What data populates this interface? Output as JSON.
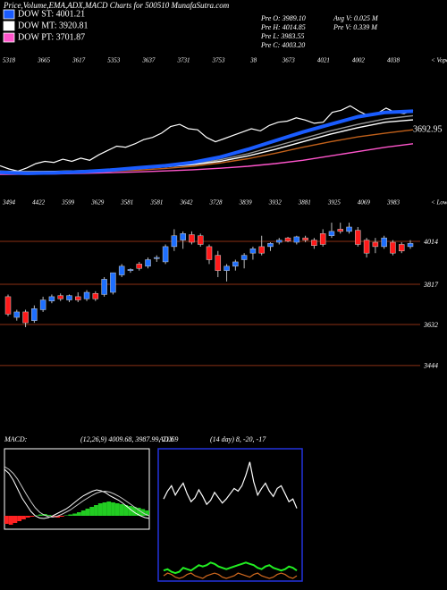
{
  "header": {
    "title": "Price,Volume,EMA,ADX,MACD Charts for 500510 MunafaSutra.com",
    "stats": [
      "Pre O: 3989.10",
      "Avg V: 0.025 M",
      "Pre H: 4014.85",
      "Pre V: 0.339 M",
      "Pre L: 3983.55",
      "Pre C: 4003.20"
    ]
  },
  "chart_data": [
    {
      "type": "line",
      "ylim": [
        3380,
        4530
      ],
      "top_labels": [
        "5318",
        "3665",
        "3617",
        "5353",
        "3637",
        "3731",
        "3753",
        "38",
        "3673",
        "4021",
        "4002",
        "4038"
      ],
      "corner_label": "< Vopo",
      "annotation": "3692.95",
      "series": [
        {
          "name": "DOW ST: 4001.21",
          "color": "#1a5cff",
          "values": [
            3440,
            3430,
            3435,
            3445,
            3460,
            3480,
            3500,
            3530,
            3580,
            3650,
            3730,
            3810,
            3880,
            3950,
            3990,
            4001
          ]
        },
        {
          "name": "DOW MT: 3920.81",
          "color": "#ffffff",
          "values": [
            3450,
            3445,
            3448,
            3455,
            3465,
            3475,
            3490,
            3510,
            3540,
            3590,
            3650,
            3720,
            3790,
            3850,
            3900,
            3921
          ]
        },
        {
          "name": "DOW PT: 3701.87",
          "color": "#ff55cc",
          "values": [
            3420,
            3422,
            3425,
            3430,
            3436,
            3443,
            3452,
            3463,
            3477,
            3495,
            3520,
            3550,
            3590,
            3630,
            3670,
            3702
          ]
        },
        {
          "color": "#c0601a",
          "values": [
            3430,
            3432,
            3436,
            3442,
            3450,
            3460,
            3475,
            3495,
            3525,
            3565,
            3615,
            3670,
            3720,
            3765,
            3800,
            3830
          ]
        },
        {
          "color": "#999999",
          "values": [
            3445,
            3440,
            3445,
            3452,
            3462,
            3474,
            3490,
            3515,
            3555,
            3610,
            3680,
            3750,
            3820,
            3880,
            3930,
            3960
          ]
        },
        {
          "color": "#ffffff",
          "values": [
            3500,
            3470,
            3450,
            3480,
            3520,
            3540,
            3530,
            3560,
            3540,
            3570,
            3550,
            3600,
            3640,
            3680,
            3670,
            3700,
            3740,
            3760,
            3800,
            3860,
            3880,
            3840,
            3830,
            3760,
            3720,
            3750,
            3780,
            3810,
            3840,
            3820,
            3870,
            3900,
            3910,
            3940,
            3920,
            3890,
            3900,
            3990,
            4010,
            4050,
            4000,
            3960,
            3980,
            4030,
            3990,
            3980,
            4010
          ]
        }
      ]
    },
    {
      "type": "candlestick",
      "ylim": [
        3316,
        4199
      ],
      "yticks": [
        4014,
        3817,
        3632,
        3444
      ],
      "top_labels": [
        "3494",
        "4422",
        "3599",
        "3629",
        "3581",
        "3581",
        "3642",
        "3728",
        "3839",
        "3932",
        "3881",
        "3925",
        "4069",
        "3983"
      ],
      "corner_label": "< Lowes",
      "up_color": "#1e6fff",
      "down_color": "#ff1a1a",
      "open": [
        3760,
        3665,
        3690,
        3650,
        3700,
        3740,
        3765,
        3745,
        3760,
        3750,
        3775,
        3770,
        3780,
        3860,
        3880,
        3910,
        3900,
        3935,
        3920,
        3990,
        4020,
        4045,
        4040,
        3990,
        3950,
        3880,
        3900,
        3930,
        3960,
        3990,
        3990,
        4010,
        4030,
        4010,
        4030,
        4020,
        4050,
        4040,
        4070,
        4060,
        4065,
        4020,
        4010,
        3990,
        4010,
        4000,
        3990
      ],
      "high": [
        3770,
        3700,
        3700,
        3720,
        3760,
        3770,
        3775,
        3770,
        3780,
        3790,
        3785,
        3850,
        3870,
        3910,
        3890,
        3920,
        3940,
        3950,
        4000,
        4070,
        4060,
        4060,
        4050,
        4000,
        3970,
        3910,
        3930,
        3960,
        3990,
        4040,
        4010,
        4030,
        4035,
        4040,
        4040,
        4030,
        4070,
        4100,
        4100,
        4100,
        4080,
        4030,
        4030,
        4040,
        4020,
        4010,
        4020
      ],
      "low": [
        3670,
        3650,
        3620,
        3640,
        3690,
        3730,
        3740,
        3735,
        3735,
        3740,
        3740,
        3760,
        3770,
        3850,
        3870,
        3880,
        3890,
        3920,
        3910,
        3970,
        3980,
        4000,
        3990,
        3910,
        3850,
        3830,
        3880,
        3890,
        3930,
        3950,
        3970,
        4000,
        4010,
        4000,
        4010,
        3980,
        3990,
        4030,
        4050,
        4050,
        3990,
        3940,
        3960,
        3980,
        3950,
        3960,
        3980
      ],
      "close": [
        3680,
        3690,
        3640,
        3705,
        3745,
        3760,
        3750,
        3765,
        3745,
        3780,
        3750,
        3840,
        3870,
        3900,
        3885,
        3890,
        3930,
        3940,
        3990,
        4040,
        4050,
        4010,
        4000,
        3930,
        3880,
        3900,
        3920,
        3950,
        3980,
        3960,
        4005,
        4020,
        4015,
        4035,
        4020,
        3995,
        4000,
        4060,
        4060,
        4080,
        4000,
        3960,
        3990,
        4030,
        3960,
        3970,
        4005
      ]
    },
    {
      "type": "macd",
      "title": "MACD:",
      "params": "(12,26,9) 4009.68, 3987.99, 21.69",
      "ylim": [
        -30,
        150
      ],
      "hist_up_color": "#22cc22",
      "hist_down_color": "#ff2222",
      "histogram": [
        -18,
        -20,
        -16,
        -12,
        -8,
        -4,
        -2,
        1,
        3,
        4,
        2,
        -2,
        -4,
        -2,
        1,
        3,
        5,
        8,
        12,
        16,
        20,
        24,
        28,
        30,
        32,
        30,
        28,
        26,
        24,
        22,
        20,
        18,
        15,
        12
      ],
      "series": [
        {
          "color": "#ffffff",
          "values": [
            104,
            95,
            80,
            60,
            40,
            25,
            10,
            0,
            -5,
            -6,
            -4,
            0,
            5,
            10,
            15,
            22,
            30,
            38,
            45,
            50,
            55,
            58,
            56,
            52,
            45,
            40,
            35,
            28,
            20,
            12,
            5,
            0,
            -4,
            -6
          ]
        },
        {
          "color": "#cccccc",
          "values": [
            110,
            104,
            95,
            82,
            65,
            48,
            32,
            18,
            8,
            2,
            -2,
            -3,
            -1,
            3,
            8,
            13,
            20,
            27,
            34,
            40,
            46,
            51,
            54,
            55,
            53,
            49,
            44,
            38,
            31,
            24,
            17,
            10,
            4,
            0
          ]
        }
      ]
    },
    {
      "type": "adx",
      "title": "ADX",
      "params": "(14 day) 8, -20, -17",
      "ylim": [
        0,
        100
      ],
      "series": [
        {
          "color": "#ffffff",
          "values": [
            62,
            68,
            72,
            65,
            70,
            74,
            66,
            60,
            63,
            69,
            64,
            58,
            61,
            67,
            63,
            59,
            62,
            66,
            70,
            68,
            72,
            80,
            90,
            75,
            65,
            70,
            74,
            68,
            64,
            70,
            72,
            66,
            60,
            62,
            55
          ]
        },
        {
          "color": "#22ee22",
          "values": [
            8,
            9,
            7,
            6,
            7,
            10,
            9,
            8,
            10,
            12,
            11,
            12,
            14,
            13,
            11,
            10,
            9,
            10,
            11,
            12,
            13,
            14,
            13,
            12,
            10,
            9,
            11,
            12,
            10,
            9,
            8,
            9,
            11,
            10,
            8
          ]
        },
        {
          "color": "#d2691e",
          "values": [
            4,
            6,
            5,
            3,
            2,
            3,
            5,
            6,
            4,
            3,
            2,
            4,
            5,
            6,
            5,
            3,
            2,
            3,
            4,
            6,
            5,
            4,
            3,
            5,
            6,
            4,
            3,
            2,
            3,
            5,
            6,
            5,
            3,
            2,
            4
          ]
        }
      ]
    }
  ]
}
